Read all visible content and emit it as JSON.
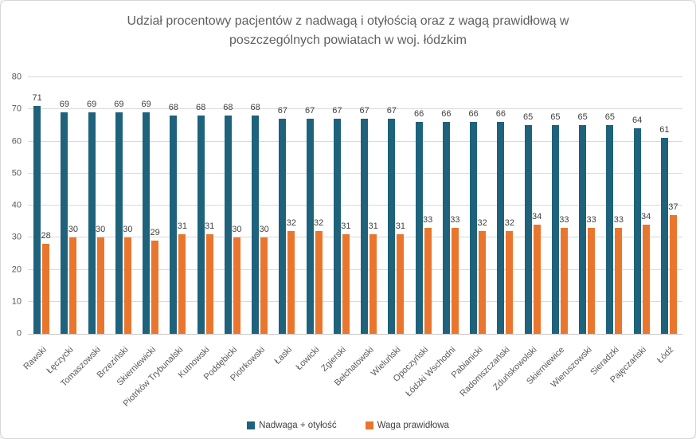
{
  "title": "Udział procentowy pacjentów z nadwagą i otyłością oraz z wagą prawidłową w poszczególnych powiatach w woj. łódzkim",
  "chart_data": {
    "type": "bar",
    "title": "Udział procentowy pacjentów z nadwagą i otyłością oraz z wagą prawidłową w poszczególnych powiatach w woj. łódzkim",
    "categories": [
      "Rawski",
      "Łęczycki",
      "Tomaszowski",
      "Brzeziński",
      "Skierniewicki",
      "Piotrków Trybunalski",
      "Kutnowski",
      "Poddębicki",
      "Piotrkowski",
      "Łaski",
      "Łowicki",
      "Zgierski",
      "Bełchatowski",
      "Wieluński",
      "Opoczyński",
      "Łódzki Wschodni",
      "Pabianicki",
      "Radomszczański",
      "Zduńskowolski",
      "Skierniewice",
      "Wieruszowski",
      "Sieradzki",
      "Pajęczański",
      "Łódź"
    ],
    "series": [
      {
        "name": "Nadwaga + otyłość",
        "color": "#1E627C",
        "values": [
          71,
          69,
          69,
          69,
          69,
          68,
          68,
          68,
          68,
          67,
          67,
          67,
          67,
          67,
          66,
          66,
          66,
          66,
          65,
          65,
          65,
          65,
          64,
          61
        ]
      },
      {
        "name": "Waga prawidłowa",
        "color": "#EA762D",
        "values": [
          28,
          30,
          30,
          30,
          29,
          31,
          31,
          30,
          30,
          32,
          32,
          31,
          31,
          31,
          33,
          33,
          32,
          32,
          34,
          33,
          33,
          33,
          34,
          37
        ]
      }
    ],
    "ylim": [
      0,
      80
    ],
    "yticks": [
      0,
      10,
      20,
      30,
      40,
      50,
      60,
      70,
      80
    ],
    "grid": true,
    "data_labels": true,
    "legend_position": "bottom",
    "x_label_rotation": -45,
    "xlabel": "",
    "ylabel": ""
  },
  "colors": {
    "grid": "#d9d9d9",
    "axis_line": "#c6c6c6",
    "tick_text": "#595959",
    "data_label_text": "#404040",
    "title_text": "#5f5f5f",
    "background": "#ffffff",
    "border": "#d6d6d6"
  }
}
